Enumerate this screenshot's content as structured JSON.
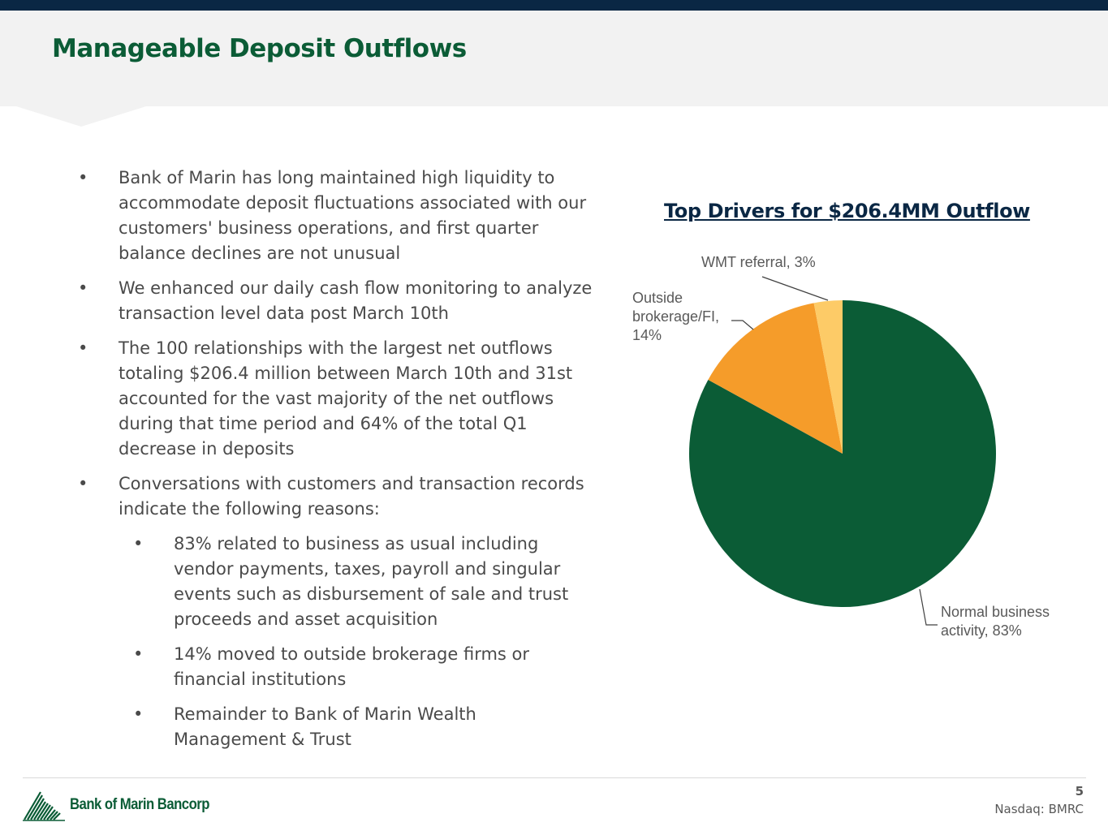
{
  "slide": {
    "title": "Manageable Deposit Outflows"
  },
  "bullets": [
    {
      "marker": "•",
      "text": "Bank of Marin has long maintained high liquidity to accommodate deposit fluctuations associated with our customers' business operations, and first quarter balance declines are not unusual"
    },
    {
      "marker": "•",
      "text": "We enhanced our daily cash flow monitoring to analyze transaction level data post March 10th"
    },
    {
      "marker": "•",
      "text": "The 100 relationships with the largest net outflows totaling $206.4 million between March 10th and 31st accounted for the vast majority of the net outflows during that time period and 64% of the total Q1 decrease in deposits"
    },
    {
      "marker": "•",
      "text": "Conversations with customers and transaction records indicate the following reasons:"
    }
  ],
  "sub_bullets": [
    {
      "marker": "•",
      "text": "83% related to business as usual including vendor payments, taxes, payroll and singular events such as disbursement of sale and trust proceeds and asset acquisition"
    },
    {
      "marker": "•",
      "text": "14% moved to outside brokerage firms or financial institutions"
    },
    {
      "marker": "•",
      "text": "Remainder to Bank of Marin Wealth Management & Trust"
    }
  ],
  "chart_data": {
    "type": "pie",
    "title": "Top Drivers for $206.4MM Outflow",
    "categories": [
      "Normal business activity",
      "Outside brokerage/FI",
      "WMT referral"
    ],
    "values": [
      83,
      14,
      3
    ],
    "unit": "%",
    "colors": [
      "#0b5c36",
      "#f59c2a",
      "#fdcb67"
    ],
    "data_labels": [
      [
        "Normal business",
        "activity, 83%"
      ],
      [
        "Outside",
        "brokerage/FI,",
        "14%"
      ],
      [
        "WMT referral, 3%"
      ]
    ],
    "legend": "none",
    "label_placement": "outside with leader lines"
  },
  "footer": {
    "logo_text": "Bank of Marin Bancorp",
    "logo_icon": "mountain-lines-logo-icon",
    "page_number": "5",
    "ticker": "Nasdaq: BMRC"
  },
  "colors": {
    "top_bar": "#0a2744",
    "header_band": "#f2f2f2",
    "title_green": "#0b5c36",
    "chart_title_navy": "#0a2744",
    "body_text": "#4a4a4a"
  }
}
